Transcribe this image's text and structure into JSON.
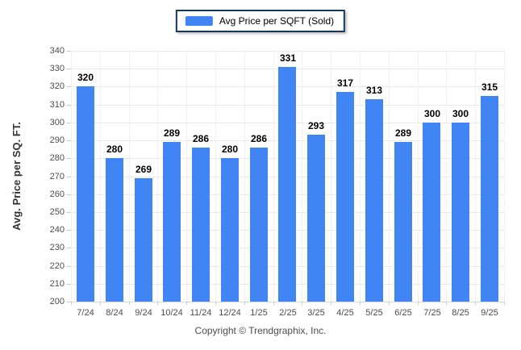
{
  "chart_data": {
    "type": "bar",
    "title": "",
    "legend": [
      "Avg Price per SQFT (Sold)"
    ],
    "legend_position": "top",
    "categories": [
      "7/24",
      "8/24",
      "9/24",
      "10/24",
      "11/24",
      "12/24",
      "1/25",
      "2/25",
      "3/25",
      "4/25",
      "5/25",
      "6/25",
      "7/25",
      "8/25",
      "9/25"
    ],
    "values": [
      320,
      280,
      269,
      289,
      286,
      280,
      286,
      331,
      293,
      317,
      313,
      289,
      300,
      300,
      315
    ],
    "xlabel": "",
    "ylabel": "Avg. Price per SQ. FT.",
    "ylim": [
      200,
      340
    ],
    "ytick_step": 10,
    "grid": true,
    "bar_color": "#4184f3"
  },
  "footer": {
    "copyright": "Copyright © Trendgraphix, Inc."
  },
  "colors": {
    "bar": "#4184f3",
    "legend_border": "#17375e",
    "gridline": "#e9e9e9",
    "baseline": "#d9d9d9",
    "gridline_vertical": "#f1f1f1",
    "tick": "#cccccc",
    "tick_label": "#4d4d4d",
    "value_label": "#000000"
  }
}
